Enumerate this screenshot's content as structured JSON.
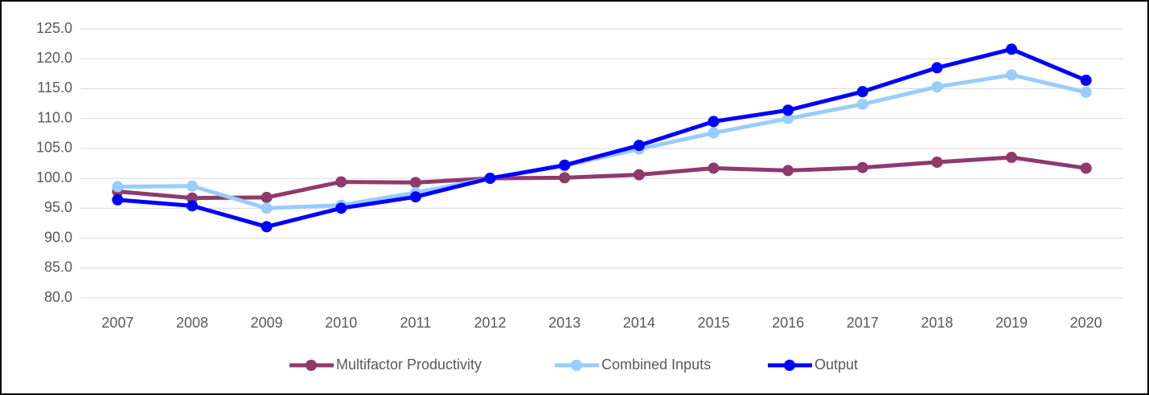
{
  "chart_data": {
    "type": "line",
    "categories": [
      "2007",
      "2008",
      "2009",
      "2010",
      "2011",
      "2012",
      "2013",
      "2014",
      "2015",
      "2016",
      "2017",
      "2018",
      "2019",
      "2020"
    ],
    "series": [
      {
        "name": "Multifactor Productivity",
        "color": "#8e3a6b",
        "values": [
          97.8,
          96.7,
          96.8,
          99.4,
          99.3,
          100.0,
          100.1,
          100.6,
          101.7,
          101.3,
          101.8,
          102.7,
          103.5,
          101.7
        ]
      },
      {
        "name": "Combined Inputs",
        "color": "#99ccff",
        "values": [
          98.6,
          98.7,
          95.0,
          95.5,
          97.6,
          100.0,
          102.1,
          104.9,
          107.6,
          110.0,
          112.4,
          115.3,
          117.3,
          114.4
        ]
      },
      {
        "name": "Output",
        "color": "#0000ff",
        "values": [
          96.4,
          95.4,
          91.9,
          95.0,
          96.9,
          100.0,
          102.2,
          105.5,
          109.5,
          111.4,
          114.5,
          118.5,
          121.6,
          116.4
        ]
      }
    ],
    "ylim": [
      80,
      125
    ],
    "yticks": [
      {
        "value": 80,
        "label": "80.0"
      },
      {
        "value": 85,
        "label": "85.0"
      },
      {
        "value": 90,
        "label": "90.0"
      },
      {
        "value": 95,
        "label": "95.0"
      },
      {
        "value": 100,
        "label": "100.0"
      },
      {
        "value": 105,
        "label": "105.0"
      },
      {
        "value": 110,
        "label": "110.0"
      },
      {
        "value": 115,
        "label": "115.0"
      },
      {
        "value": 120,
        "label": "120.0"
      },
      {
        "value": 125,
        "label": "125.0"
      }
    ],
    "grid": true,
    "legend": "bottom"
  }
}
